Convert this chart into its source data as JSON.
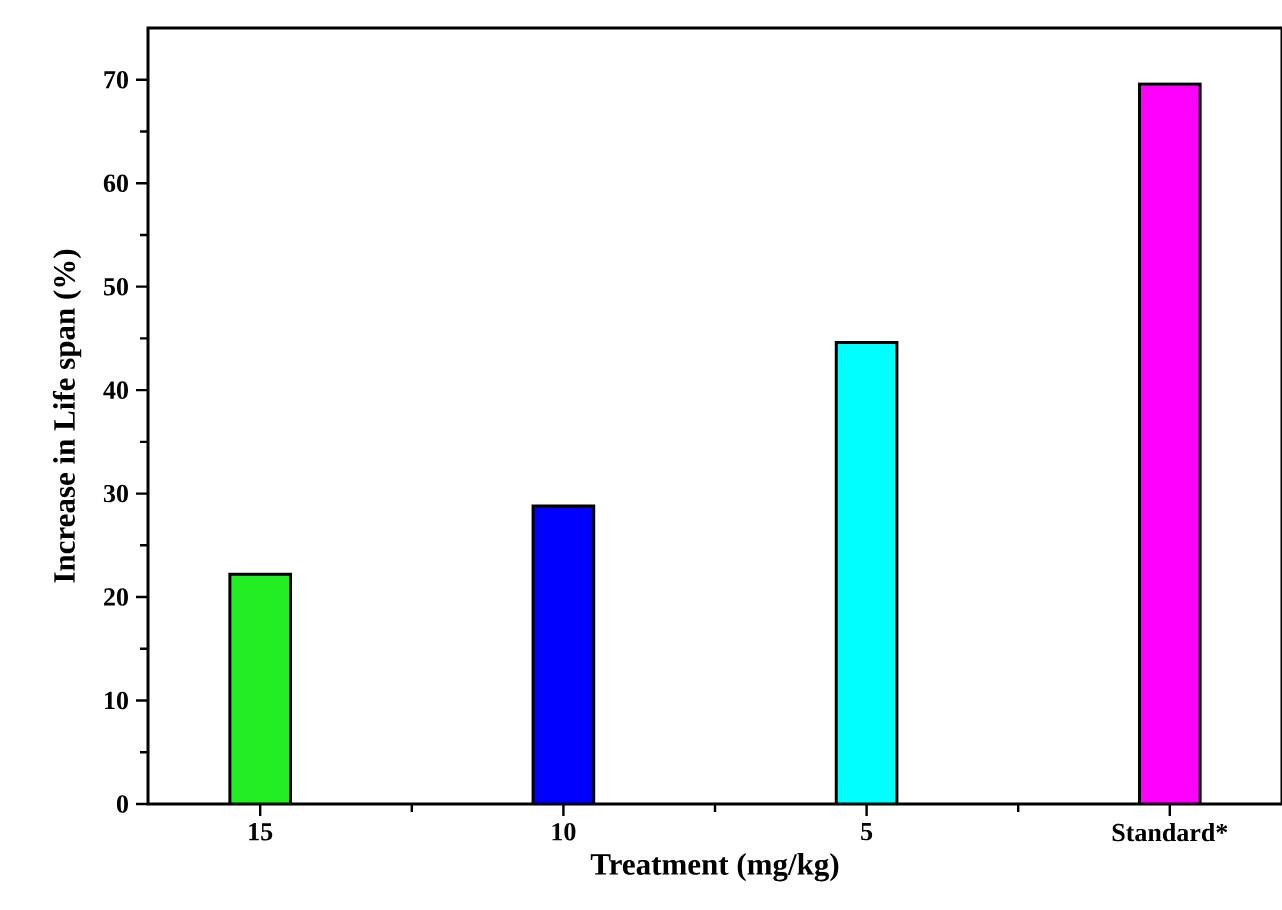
{
  "chart_data": {
    "type": "bar",
    "xlabel": "Treatment (mg/kg)",
    "ylabel": "Increase in Life span (%)",
    "categories": [
      "15",
      "10",
      "5",
      "Standard*"
    ],
    "values": [
      22.2,
      28.8,
      44.6,
      69.6
    ],
    "colors": [
      "#22ee22",
      "#0000ff",
      "#00ffff",
      "#ff00ff"
    ],
    "ylim": [
      0,
      75
    ],
    "yticks": [
      0,
      10,
      20,
      30,
      40,
      50,
      60,
      70
    ]
  }
}
